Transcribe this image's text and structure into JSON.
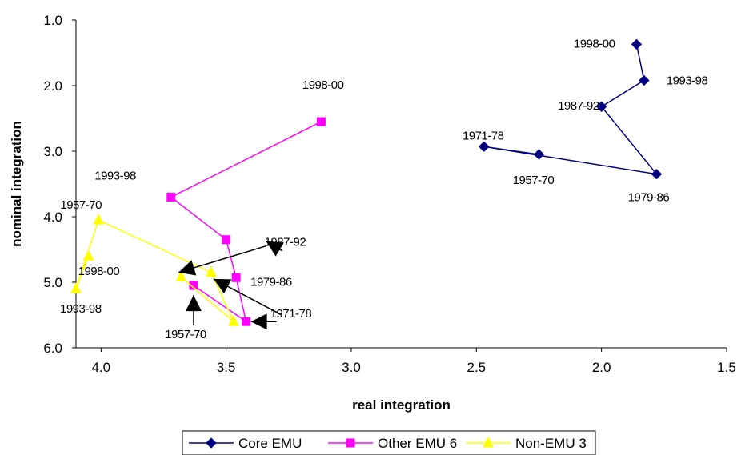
{
  "chart_data": {
    "type": "scatter",
    "xlabel": "real integration",
    "ylabel": "nominal integration",
    "xlim": [
      4.1,
      1.5
    ],
    "ylim": [
      1.0,
      6.0
    ],
    "x_reversed": true,
    "y_reversed": true,
    "x_ticks": [
      "4.0",
      "3.5",
      "3.0",
      "2.5",
      "2.0",
      "1.5"
    ],
    "y_ticks": [
      "1.0",
      "2.0",
      "3.0",
      "4.0",
      "5.0",
      "6.0"
    ],
    "grid": false,
    "legend_position": "bottom",
    "series": [
      {
        "name": "Core EMU",
        "color": "#000080",
        "marker": "diamond",
        "points": [
          {
            "label": "1957-70",
            "x": 2.25,
            "y": 3.05
          },
          {
            "label": "1971-78",
            "x": 2.47,
            "y": 2.93
          },
          {
            "label": "1979-86",
            "x": 1.78,
            "y": 3.35
          },
          {
            "label": "1987-92",
            "x": 2.0,
            "y": 2.32
          },
          {
            "label": "1993-98",
            "x": 1.83,
            "y": 1.92
          },
          {
            "label": "1998-00",
            "x": 1.86,
            "y": 1.37
          }
        ]
      },
      {
        "name": "Other EMU 6",
        "color": "#ff00ff",
        "marker": "square",
        "points": [
          {
            "label": "1957-70",
            "x": 3.63,
            "y": 5.05
          },
          {
            "label": "1971-78",
            "x": 3.42,
            "y": 5.6
          },
          {
            "label": "1979-86",
            "x": 3.46,
            "y": 4.93
          },
          {
            "label": "1987-92",
            "x": 3.5,
            "y": 4.35
          },
          {
            "label": "1993-98",
            "x": 3.72,
            "y": 3.7
          },
          {
            "label": "1998-00",
            "x": 3.12,
            "y": 2.55
          }
        ]
      },
      {
        "name": "Non-EMU 3",
        "color": "#ffff00",
        "marker": "triangle",
        "points": [
          {
            "label": "1957-70",
            "x": 3.68,
            "y": 4.92
          },
          {
            "label": "1971-78",
            "x": 3.47,
            "y": 5.6
          },
          {
            "label": "1979-86",
            "x": 3.56,
            "y": 4.85
          },
          {
            "label": "1987-92",
            "x": 4.01,
            "y": 4.05
          },
          {
            "label": "1993-98",
            "x": 4.1,
            "y": 5.1
          },
          {
            "label": "1998-00",
            "x": 4.05,
            "y": 4.6
          }
        ]
      }
    ],
    "annotations": [
      {
        "text": "1998-00",
        "series": "Core EMU"
      },
      {
        "text": "1993-98",
        "series": "Core EMU"
      },
      {
        "text": "1987-92",
        "series": "Core EMU"
      },
      {
        "text": "1971-78",
        "series": "Core EMU"
      },
      {
        "text": "1957-70",
        "series": "Core EMU"
      },
      {
        "text": "1979-86",
        "series": "Core EMU"
      },
      {
        "text": "1998-00",
        "series": "Other EMU 6"
      },
      {
        "text": "1993-98",
        "series": "Other EMU 6"
      },
      {
        "text": "1957-70",
        "series": "Non-EMU 3"
      },
      {
        "text": "1998-00",
        "series": "Non-EMU 3"
      },
      {
        "text": "1993-98",
        "series": "Non-EMU 3"
      },
      {
        "text": "1987-92",
        "series": "arrowed"
      },
      {
        "text": "1979-86",
        "series": "arrowed"
      },
      {
        "text": "1971-78",
        "series": "arrowed"
      },
      {
        "text": "1957-70",
        "series": "arrowed"
      }
    ]
  }
}
